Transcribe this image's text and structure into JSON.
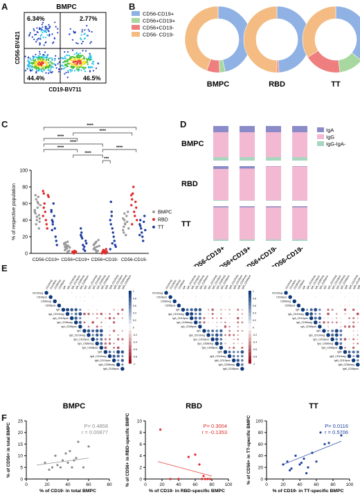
{
  "panel_labels": {
    "A": "A",
    "B": "B",
    "C": "C",
    "D": "D",
    "E": "E",
    "F": "F"
  },
  "panelA": {
    "title": "BMPC",
    "xlabel": "CD19-BV711",
    "ylabel": "CD56-BV421",
    "quadrants": {
      "ul": "6.34%",
      "ur": "2.77%",
      "ll": "44.4%",
      "lr": "46.5%"
    },
    "colors": {
      "blue": "#1f3fbf",
      "cyan": "#22c0e8",
      "green": "#49c03a",
      "yellow": "#f3e02c",
      "red": "#e83a2c"
    }
  },
  "chart_data": [
    {
      "id": "B",
      "type": "pie",
      "style": "donut",
      "legend": [
        "CD56-CD19+",
        "CD56+CD19+",
        "CD56+CD19-",
        "CD56- CD19-"
      ],
      "colors": [
        "#8fb1e3",
        "#a8d8a0",
        "#ef7e7f",
        "#f4bb83"
      ],
      "charts": [
        {
          "title": "BMPC",
          "values": [
            46.5,
            2.77,
            6.34,
            44.4
          ]
        },
        {
          "title": "RBD",
          "values": [
            49,
            0,
            1,
            50
          ]
        },
        {
          "title": "TT",
          "values": [
            36,
            12,
            18,
            34
          ]
        }
      ]
    },
    {
      "id": "C",
      "type": "scatter",
      "ylabel": "% of respective population",
      "categories": [
        "CD56-CD19+",
        "CD56+CD19+",
        "CD56+CD19-",
        "CD56-CD19-"
      ],
      "ylim": [
        0,
        100
      ],
      "yticks": [
        0,
        20,
        40,
        60,
        80,
        100
      ],
      "series": [
        {
          "name": "BMPC",
          "color": "#9a9a9a",
          "values": [
            [
              52,
              48,
              65,
              40,
              55,
              60,
              46,
              38,
              58,
              50,
              70,
              35,
              44,
              62,
              68,
              30,
              42
            ],
            [
              12,
              8,
              5,
              10,
              6,
              14,
              9,
              3,
              7,
              11,
              4,
              13,
              6,
              8,
              2
            ],
            [
              10,
              6,
              12,
              4,
              14,
              8,
              3,
              16,
              9,
              5,
              11,
              7,
              13,
              2
            ],
            [
              28,
              32,
              40,
              35,
              22,
              45,
              38,
              50,
              30,
              42,
              25,
              48,
              36
            ]
          ]
        },
        {
          "name": "RBD",
          "color": "#e02828",
          "values": [
            [
              75,
              72,
              60,
              50,
              40,
              35,
              30,
              70,
              68,
              45,
              55
            ],
            [
              2,
              1,
              0,
              3,
              1,
              2
            ],
            [
              0,
              2,
              4,
              1,
              3,
              0,
              5,
              2
            ],
            [
              58,
              65,
              72,
              80,
              50,
              45,
              62,
              55,
              40,
              70,
              35
            ]
          ]
        },
        {
          "name": "TT",
          "color": "#1f3fa0",
          "values": [
            [
              50,
              40,
              35,
              60,
              45,
              30,
              20,
              15,
              10,
              52,
              28,
              38
            ],
            [
              22,
              25,
              18,
              10,
              5,
              8,
              3,
              15,
              12,
              30,
              20
            ],
            [
              40,
              62,
              50,
              30,
              25,
              20,
              15,
              10,
              8,
              5,
              35,
              45,
              12
            ],
            [
              35,
              40,
              30,
              25,
              20,
              15,
              38,
              45,
              28,
              22,
              33
            ]
          ]
        }
      ],
      "significance": [
        "****",
        "****",
        "****",
        "****",
        "****",
        "****",
        "****",
        "***"
      ]
    },
    {
      "id": "D",
      "type": "bar",
      "stacked": true,
      "categories": [
        "CD56-CD19+",
        "CD56+CD19+",
        "CD56+CD19-",
        "CD56-CD19-"
      ],
      "legend": [
        "IgA",
        "IgG",
        "IgG-IgA-"
      ],
      "colors": [
        "#8a8bc8",
        "#f3b8d2",
        "#a8d6bf"
      ],
      "rows": [
        {
          "title": "BMPC",
          "series": {
            "IgA": [
              18,
              18,
              18,
              18
            ],
            "IgG": [
              72,
              72,
              72,
              72
            ],
            "IgG-IgA-": [
              10,
              10,
              10,
              10
            ]
          }
        },
        {
          "title": "RBD",
          "series": {
            "IgA": [
              8,
              7,
              1,
              1
            ],
            "IgG": [
              90,
              92,
              98,
              98
            ],
            "IgG-IgA-": [
              2,
              1,
              1,
              1
            ]
          }
        },
        {
          "title": "TT",
          "series": {
            "IgA": [
              3,
              3,
              3,
              3
            ],
            "IgG": [
              93,
              93,
              93,
              93
            ],
            "IgG-IgA-": [
              4,
              4,
              4,
              4
            ]
          }
        }
      ]
    },
    {
      "id": "E",
      "type": "heatmap",
      "titles": [
        "BMPC",
        "RBD",
        "TT"
      ],
      "row_labels": [
        "CD19neg",
        "CD19pos",
        "CD56neg",
        "CD56pos",
        "IgA",
        "IgA_CD19neg",
        "IgA_CD19pos",
        "IgA_CD56neg",
        "IgA_CD56pos",
        "IgG",
        "IgG_CD19neg",
        "IgG_CD19pos",
        "IgG_CD56neg",
        "IgG_CD56pos",
        "IgM",
        "IgM_CD19neg",
        "IgM_CD19pos",
        "IgM_CD56neg",
        "IgM_CD56pos"
      ],
      "scale_ticks": [
        "1",
        "0.8",
        "0.6",
        "0.4",
        "0.2",
        "0",
        "-0.2",
        "-0.4",
        "-0.6",
        "-0.8",
        "-1"
      ]
    },
    {
      "id": "F1",
      "type": "scatter",
      "xlabel": "% of CD19- in total BMPC",
      "ylabel": "% of CD56+ in total BMPC",
      "xlim": [
        0,
        80
      ],
      "ylim": [
        0,
        25
      ],
      "xticks": [
        0,
        20,
        40,
        60,
        80
      ],
      "yticks": [
        0,
        5,
        10,
        15,
        20,
        25
      ],
      "annotation": [
        "P= 0.4858",
        "r = 0.00877"
      ],
      "annotation_color": "#8a8a8a",
      "line": [
        [
          10,
          6
        ],
        [
          60,
          9
        ]
      ],
      "x": [
        18,
        25,
        28,
        30,
        35,
        40,
        42,
        44,
        48,
        50,
        55,
        60,
        38,
        22,
        33,
        46
      ],
      "y": [
        7,
        5,
        10,
        6,
        8,
        7,
        12,
        5,
        9,
        16,
        5,
        14,
        11,
        4,
        5,
        8
      ]
    },
    {
      "id": "F2",
      "type": "scatter",
      "xlabel": "% of CD19- in RBD-specific BMPC",
      "ylabel": "% of CD56+ in RBD-specific BMPC",
      "xlim": [
        0,
        100
      ],
      "ylim": [
        0,
        10
      ],
      "xticks": [
        0,
        20,
        40,
        60,
        80,
        100
      ],
      "yticks": [
        0,
        2,
        4,
        6,
        8,
        10
      ],
      "annotation": [
        "P= 0.3004",
        "r = -0.1353"
      ],
      "annotation_color": "#e02828",
      "line": [
        [
          15,
          3
        ],
        [
          80,
          0.5
        ]
      ],
      "x": [
        18,
        30,
        40,
        52,
        60,
        65,
        68,
        70,
        72,
        75,
        78
      ],
      "y": [
        8.5,
        0,
        0,
        3.8,
        4.2,
        2.5,
        0,
        0.5,
        0,
        0,
        0
      ]
    },
    {
      "id": "F3",
      "type": "scatter",
      "xlabel": "% of CD19- in TT-specific BMPC",
      "ylabel": "% of CD56+ in TT-specific BMPC",
      "xlim": [
        0,
        100
      ],
      "ylim": [
        0,
        100
      ],
      "xticks": [
        0,
        20,
        40,
        60,
        80,
        100
      ],
      "yticks": [
        0,
        20,
        40,
        60,
        80,
        100
      ],
      "annotation": [
        "P= 0.0116",
        "r = 0.5706"
      ],
      "annotation_color": "#1f3fa0",
      "line": [
        [
          20,
          25
        ],
        [
          90,
          65
        ]
      ],
      "x": [
        20,
        25,
        28,
        35,
        40,
        45,
        48,
        50,
        55,
        60,
        65,
        70,
        75,
        90,
        30,
        42
      ],
      "y": [
        25,
        30,
        15,
        40,
        25,
        35,
        10,
        20,
        45,
        30,
        80,
        60,
        62,
        75,
        18,
        28
      ]
    }
  ]
}
